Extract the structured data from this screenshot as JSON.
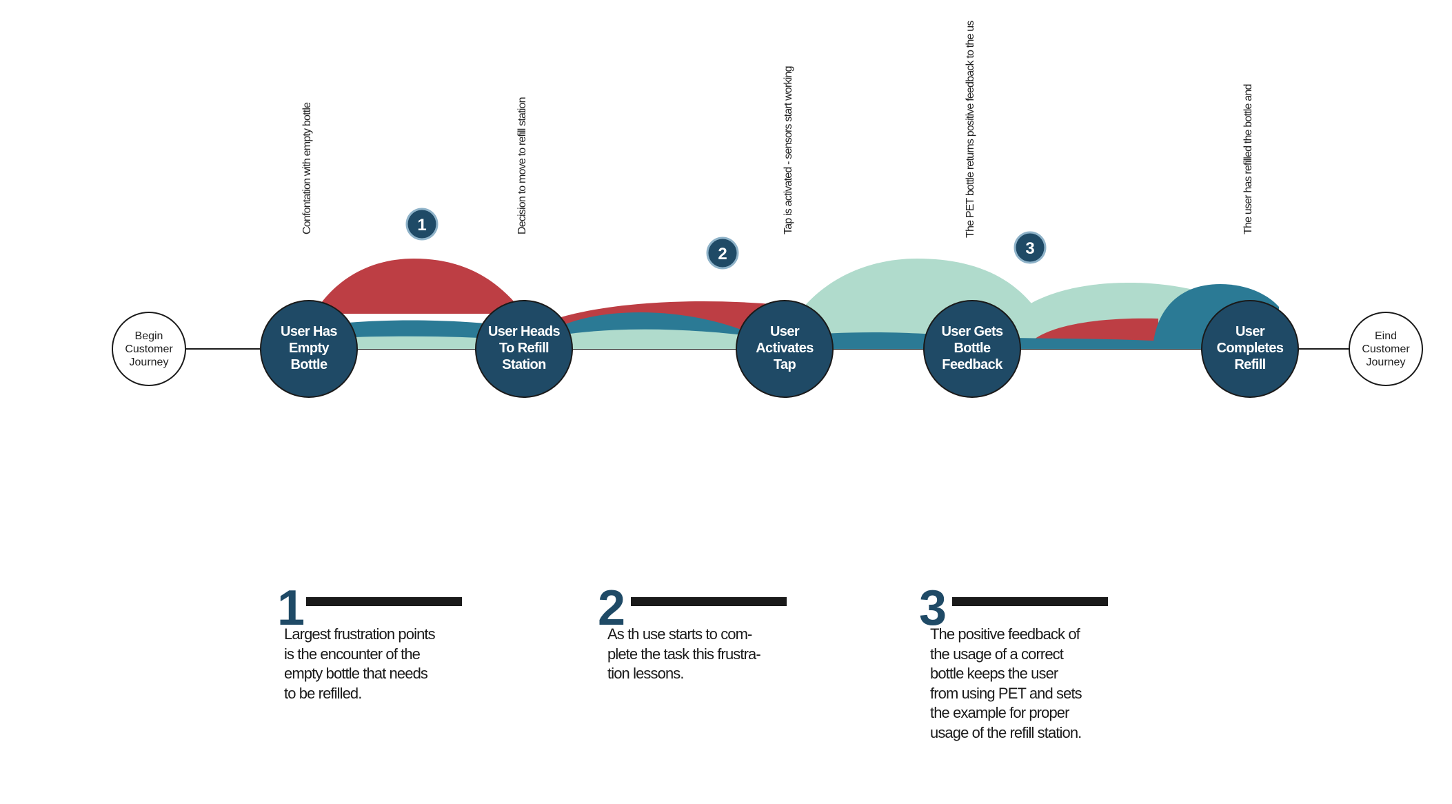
{
  "journey": {
    "start": {
      "lines": [
        "Begin",
        "Customer",
        "Journey"
      ]
    },
    "end": {
      "lines": [
        "Eind",
        "Customer",
        "Journey"
      ]
    },
    "stages": [
      {
        "id": "empty-bottle",
        "lines": [
          "User Has",
          "Empty",
          "Bottle"
        ],
        "annotation": "Confontation with empty bottle"
      },
      {
        "id": "heads-to-station",
        "lines": [
          "User Heads",
          "To Refill",
          "Station"
        ],
        "annotation": "Decision to move to refill station"
      },
      {
        "id": "activates-tap",
        "lines": [
          "User",
          "Activates",
          "Tap"
        ],
        "annotation": "Tap is activated - sensors start working"
      },
      {
        "id": "bottle-feedback",
        "lines": [
          "User Gets",
          "Bottle",
          "Feedback"
        ],
        "annotation": "The PET bottle returns positive feedback to the us"
      },
      {
        "id": "completes-refill",
        "lines": [
          "User",
          "Completes",
          "Refill"
        ],
        "annotation": "The user has refilled the bottle and"
      }
    ],
    "badges": [
      "1",
      "2",
      "3"
    ]
  },
  "notes": [
    {
      "number": "1",
      "text": "Largest frustration points\nis the encounter of the\nempty bottle that needs\nto be refilled."
    },
    {
      "number": "2",
      "text": "As th use starts to com-\nplete the task this frustra-\ntion lessons."
    },
    {
      "number": "3",
      "text": "The positive feedback of\nthe usage of a correct\nbottle  keeps the user\nfrom using PET and sets\nthe example for proper\nusage of the refill station."
    }
  ],
  "colors": {
    "node_fill": "#1f4a66",
    "frustration_red": "#bd3e44",
    "teal": "#2b7a95",
    "mint": "#b0dbcc",
    "text": "#1a1a1a"
  }
}
